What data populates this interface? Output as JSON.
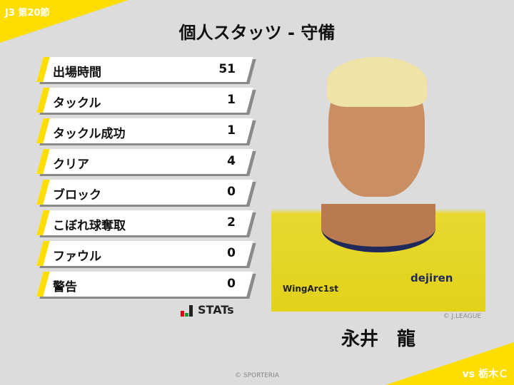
{
  "header": {
    "round": "J3 第20節",
    "title": "個人スタッツ - 守備"
  },
  "stats": [
    {
      "label": "出場時間",
      "value": "51"
    },
    {
      "label": "タックル",
      "value": "1"
    },
    {
      "label": "タックル成功",
      "value": "1"
    },
    {
      "label": "クリア",
      "value": "4"
    },
    {
      "label": "ブロック",
      "value": "0"
    },
    {
      "label": "こぼれ球奪取",
      "value": "2"
    },
    {
      "label": "ファウル",
      "value": "0"
    },
    {
      "label": "警告",
      "value": "0"
    }
  ],
  "logo": {
    "text": "STATs"
  },
  "player": {
    "name": "永井　龍",
    "photo_credit": "© J.LEAGUE",
    "jersey_sponsors": [
      "WingArc1st",
      "dejiren"
    ]
  },
  "footer": {
    "opponent": "vs 栃木Ｃ",
    "copyright": "© SPORTERIA"
  },
  "colors": {
    "accent": "#fedd00",
    "background": "#dcdcdc"
  }
}
